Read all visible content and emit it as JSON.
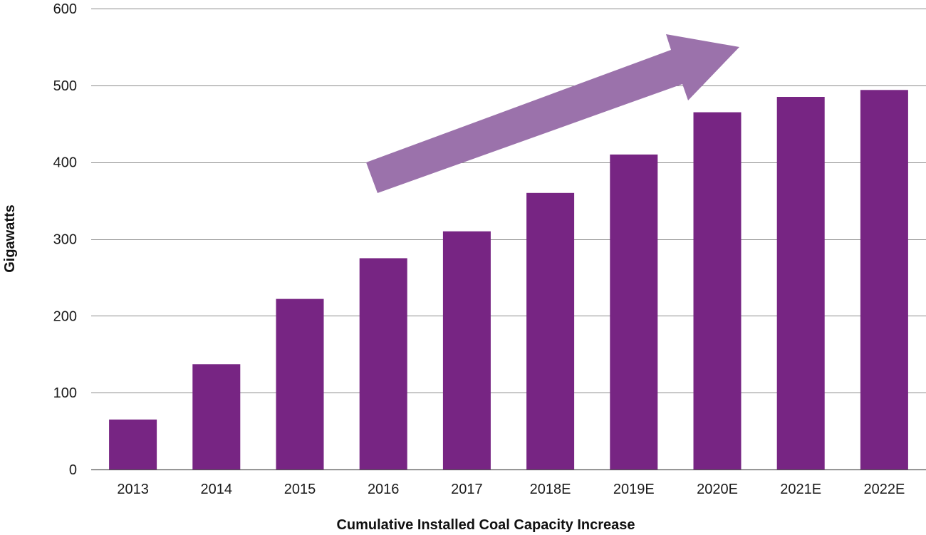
{
  "chart_data": {
    "type": "bar",
    "title": "",
    "xlabel": "Cumulative Installed Coal Capacity Increase",
    "ylabel": "Gigawatts",
    "categories": [
      "2013",
      "2014",
      "2015",
      "2016",
      "2017",
      "2018E",
      "2019E",
      "2020E",
      "2021E",
      "2022E"
    ],
    "values": [
      65,
      137,
      222,
      275,
      310,
      360,
      410,
      465,
      485,
      494
    ],
    "ylim": [
      0,
      600
    ],
    "yticks": [
      0,
      100,
      200,
      300,
      400,
      500,
      600
    ],
    "grid": true,
    "legend": "none",
    "annotation": "upward-trend-arrow",
    "colors": {
      "bar": "#772583",
      "arrow": "#9b72ab",
      "grid": "#8c8c8c"
    }
  }
}
